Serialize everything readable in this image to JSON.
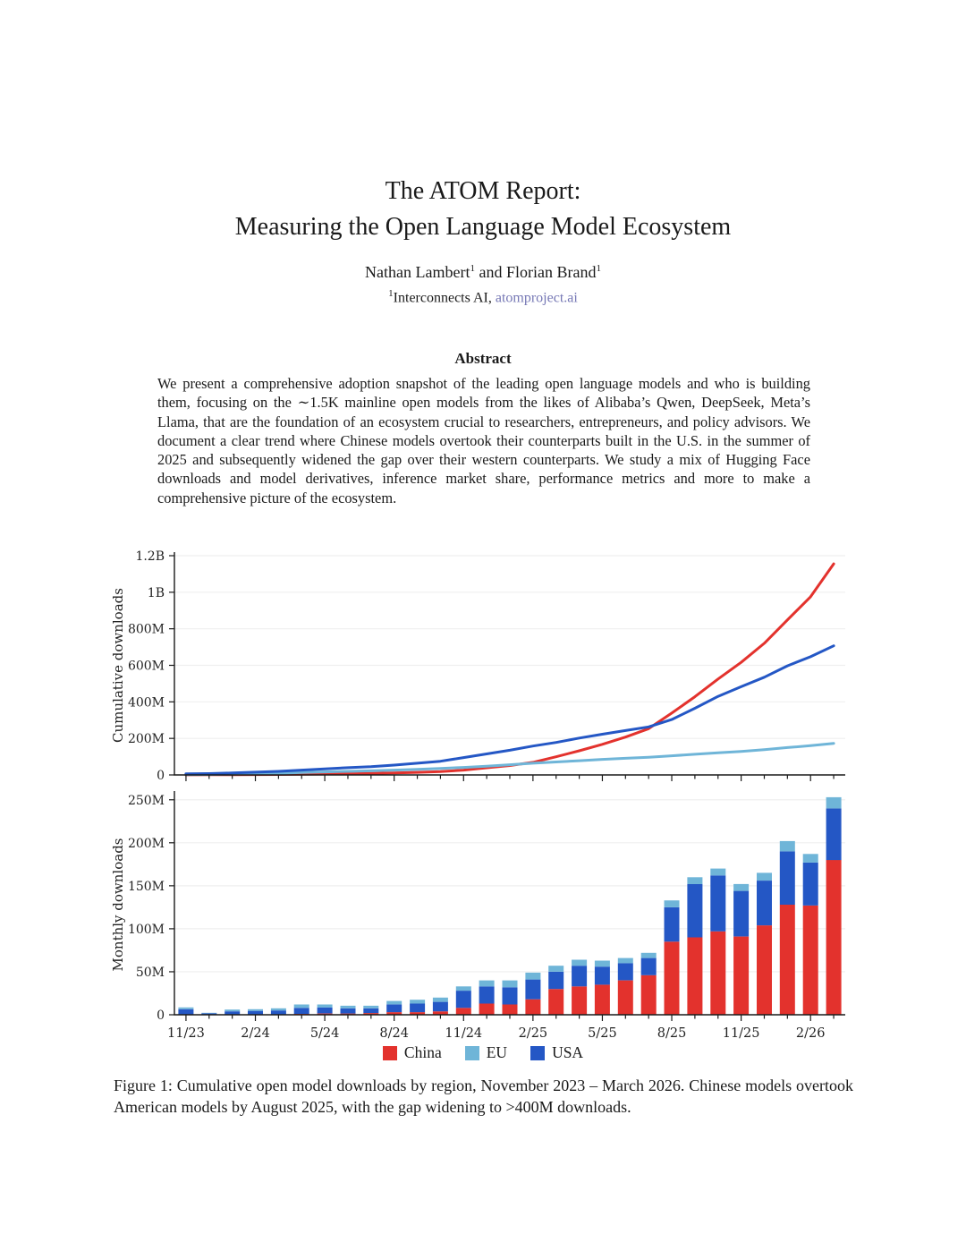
{
  "colors": {
    "link": "#7678b5",
    "china_red": "#e3322d",
    "eu_lightblue": "#6fb5d8",
    "usa_blue": "#2457c5",
    "gridline": "#efefef",
    "axis": "#1a1a1a"
  },
  "header": {
    "title_line1": "The ATOM Report:",
    "title_line2": "Measuring the Open Language Model Ecosystem",
    "author1": "Nathan Lambert",
    "author1_sup": "1",
    "author_join": " and ",
    "author2": "Florian Brand",
    "author2_sup": "1",
    "affiliation_sup": "1",
    "affiliation_text": "Interconnects AI, ",
    "affiliation_link": "atomproject.ai"
  },
  "abstract": {
    "heading": "Abstract",
    "text": "We present a comprehensive adoption snapshot of the leading open language models and who is building them, focusing on the ∼1.5K mainline open models from the likes of Alibaba’s Qwen, DeepSeek, Meta’s Llama, that are the foundation of an ecosystem crucial to researchers, entrepreneurs, and policy advisors. We document a clear trend where Chinese models overtook their counterparts built in the U.S. in the summer of 2025 and subsequently widened the gap over their western counterparts. We study a mix of Hugging Face downloads and model derivatives, inference market share, performance metrics and more to make a comprehensive picture of the ecosystem."
  },
  "figure": {
    "caption": "Figure 1: Cumulative open model downloads by region, November 2023 – March 2026. Chinese models overtook American models by August 2025, with the gap widening to >400M downloads.",
    "legend": [
      {
        "label": "China",
        "color": "#e3322d"
      },
      {
        "label": "EU",
        "color": "#6fb5d8"
      },
      {
        "label": "USA",
        "color": "#2457c5"
      }
    ]
  },
  "chart_data": [
    {
      "type": "line",
      "title": "",
      "ylabel": "Cumulative downloads",
      "x": [
        "11/23",
        "12/23",
        "1/24",
        "2/24",
        "3/24",
        "4/24",
        "5/24",
        "6/24",
        "7/24",
        "8/24",
        "9/24",
        "10/24",
        "11/24",
        "12/24",
        "1/25",
        "2/25",
        "3/25",
        "4/25",
        "5/25",
        "6/25",
        "7/25",
        "8/25",
        "9/25",
        "10/25",
        "11/25",
        "12/25",
        "1/26",
        "2/26",
        "3/26"
      ],
      "ytick_values": [
        0,
        200,
        400,
        600,
        800,
        1000,
        1200
      ],
      "ytick_labels": [
        "0",
        "200M",
        "400M",
        "600M",
        "800M",
        "1B",
        "1.2B"
      ],
      "ylim_millions": [
        0,
        1200
      ],
      "grid": true,
      "show_x_tick_labels": false,
      "xtick_label_every": 3,
      "series": [
        {
          "name": "China",
          "color": "#e3322d",
          "values_millions": [
            0.5,
            0.8,
            1.3,
            1.8,
            2.3,
            3.3,
            4.8,
            6.3,
            8.3,
            11.3,
            14.3,
            18.3,
            26.3,
            39.3,
            51.3,
            69.3,
            99.3,
            132.3,
            167.3,
            207.3,
            253.3,
            338.3,
            428.3,
            525.3,
            616.3,
            720.3,
            848.3,
            975.3,
            1155.3
          ]
        },
        {
          "name": "EU",
          "color": "#6fb5d8",
          "values_millions": [
            2,
            2.5,
            4.5,
            6.5,
            9,
            13,
            16.5,
            19.5,
            22.5,
            26.5,
            31,
            36,
            41,
            48,
            56,
            64,
            71,
            78,
            85,
            91,
            97,
            105,
            113,
            121,
            129,
            138,
            150,
            160,
            173
          ]
        },
        {
          "name": "USA",
          "color": "#2457c5",
          "values_millions": [
            6,
            7.5,
            11,
            15,
            19.5,
            26.5,
            33.5,
            39.5,
            45,
            54,
            64,
            75,
            95,
            115,
            135,
            158,
            178,
            202,
            223,
            243,
            263,
            303,
            365,
            430,
            483,
            535,
            597,
            647,
            707
          ]
        }
      ]
    },
    {
      "type": "bar",
      "stacked": true,
      "title": "",
      "ylabel": "Monthly downloads",
      "categories": [
        "11/23",
        "12/23",
        "1/24",
        "2/24",
        "3/24",
        "4/24",
        "5/24",
        "6/24",
        "7/24",
        "8/24",
        "9/24",
        "10/24",
        "11/24",
        "12/24",
        "1/25",
        "2/25",
        "3/25",
        "4/25",
        "5/25",
        "6/25",
        "7/25",
        "8/25",
        "9/25",
        "10/25",
        "11/25",
        "12/25",
        "1/26",
        "2/26",
        "3/26"
      ],
      "ytick_values": [
        0,
        50,
        100,
        150,
        200,
        250
      ],
      "ytick_labels": [
        "0",
        "50M",
        "100M",
        "150M",
        "200M",
        "250M"
      ],
      "ylim_millions": [
        0,
        256
      ],
      "grid": true,
      "show_x_tick_labels": true,
      "xtick_label_every": 3,
      "series": [
        {
          "name": "China",
          "color": "#e3322d",
          "values_millions": [
            0.5,
            0.3,
            0.5,
            0.5,
            0.5,
            1,
            1.5,
            1.5,
            2,
            3,
            3,
            4,
            8,
            13,
            12,
            18,
            30,
            33,
            35,
            40,
            46,
            85,
            90,
            97,
            91,
            104,
            128,
            127,
            180
          ]
        },
        {
          "name": "USA",
          "color": "#2457c5",
          "values_millions": [
            6,
            1.5,
            3.5,
            4,
            4.5,
            7,
            7,
            6,
            5.5,
            9,
            10,
            11,
            20,
            20,
            20,
            23,
            20,
            24,
            21,
            20,
            20,
            40,
            62,
            65,
            53,
            52,
            62,
            50,
            60
          ]
        },
        {
          "name": "EU",
          "color": "#6fb5d8",
          "values_millions": [
            2,
            0.5,
            2,
            2,
            2.5,
            4,
            3.5,
            3,
            3,
            4,
            4.5,
            5,
            5,
            7,
            8,
            8,
            7,
            7,
            7,
            6,
            6,
            8,
            8,
            8,
            8,
            9,
            12,
            10,
            13
          ]
        }
      ]
    }
  ]
}
